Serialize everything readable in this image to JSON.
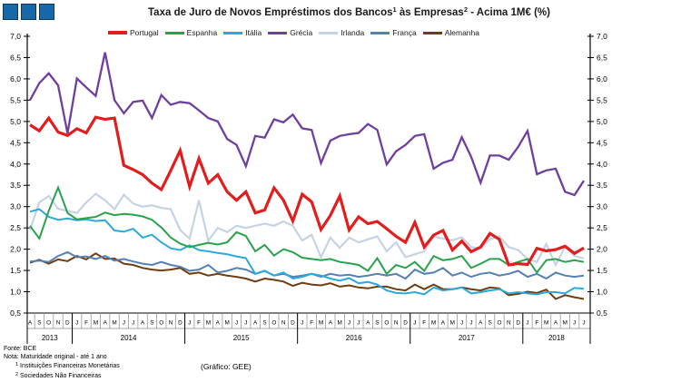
{
  "logo": {
    "color": "#1768A9",
    "border": "#0d3a5c",
    "square_count": 3
  },
  "title": {
    "part1": "Taxa de Juro de Novos Empréstimos dos Bancos",
    "sup1": "1",
    "part2": " às Empresas",
    "sup2": "2",
    "part3": " - Acima 1M€ (%)"
  },
  "footer": {
    "fonte": "Fonte: BCE",
    "nota": "Nota: Maturidade original - até 1 ano",
    "note1_sup": "1",
    "note1_text": " Instituições Financeiras Monetárias",
    "note2_sup": "2",
    "note2_text": " Sociedades Não Financeiras",
    "grafico": "(Gráfico:  GEE)"
  },
  "chart_data": {
    "type": "line",
    "title": "Taxa de Juro de Novos Empréstimos dos Bancos às Empresas - Acima 1M€ (%)",
    "ylim": [
      0.5,
      7.0
    ],
    "y_tick_step": 0.5,
    "y_tick_labels_desc": [
      "7,0",
      "6,5",
      "6,0",
      "5,5",
      "5,0",
      "4,5",
      "4,0",
      "3,5",
      "3,0",
      "2,5",
      "2,0",
      "1,5",
      "1,0",
      "0,5"
    ],
    "grid": false,
    "legend_position": "top",
    "months": [
      "A",
      "S",
      "O",
      "N",
      "D",
      "J",
      "F",
      "M",
      "A",
      "M",
      "J",
      "J",
      "A",
      "S",
      "O",
      "N",
      "D",
      "J",
      "F",
      "M",
      "A",
      "M",
      "J",
      "J",
      "A",
      "S",
      "O",
      "N",
      "D",
      "J",
      "F",
      "M",
      "A",
      "M",
      "J",
      "J",
      "A",
      "S",
      "O",
      "N",
      "D",
      "J",
      "F",
      "M",
      "A",
      "M",
      "J",
      "J",
      "A",
      "S",
      "O",
      "N",
      "D",
      "J",
      "F",
      "M",
      "A",
      "M",
      "J",
      "J"
    ],
    "years": [
      {
        "label": "2013",
        "months": 5
      },
      {
        "label": "2014",
        "months": 12
      },
      {
        "label": "2015",
        "months": 12
      },
      {
        "label": "2016",
        "months": 12
      },
      {
        "label": "2017",
        "months": 12
      },
      {
        "label": "2018",
        "months": 7
      }
    ],
    "series": [
      {
        "name": "Portugal",
        "color": "#E21D1D",
        "width": 3.2,
        "values": [
          4.92,
          4.78,
          5.08,
          4.75,
          4.67,
          4.83,
          4.73,
          5.1,
          5.05,
          5.08,
          3.97,
          3.87,
          3.75,
          3.55,
          3.4,
          3.85,
          4.32,
          3.47,
          4.13,
          3.55,
          3.75,
          3.35,
          3.15,
          3.35,
          2.85,
          2.92,
          3.44,
          3.15,
          2.66,
          3.29,
          3.11,
          2.46,
          2.79,
          3.25,
          2.45,
          2.76,
          2.6,
          2.65,
          2.48,
          2.3,
          2.16,
          2.63,
          2.05,
          2.33,
          2.44,
          1.98,
          2.19,
          1.94,
          2.05,
          2.37,
          2.23,
          1.63,
          1.66,
          1.64,
          2.02,
          1.96,
          1.99,
          2.07,
          1.9,
          2.03
        ]
      },
      {
        "name": "Espanha",
        "color": "#29A24D",
        "width": 2,
        "values": [
          2.55,
          2.25,
          2.9,
          3.45,
          2.85,
          2.7,
          2.73,
          2.76,
          2.86,
          2.8,
          2.83,
          2.81,
          2.77,
          2.69,
          2.51,
          2.27,
          2.13,
          2.05,
          2.1,
          2.15,
          2.11,
          2.16,
          2.4,
          2.31,
          1.95,
          2.1,
          1.85,
          2.0,
          1.93,
          1.8,
          1.77,
          1.74,
          1.77,
          1.7,
          1.67,
          1.63,
          1.49,
          1.79,
          1.42,
          1.63,
          1.56,
          1.7,
          1.49,
          1.84,
          1.74,
          1.77,
          1.84,
          1.56,
          1.66,
          1.77,
          1.77,
          1.63,
          1.7,
          1.77,
          1.45,
          1.74,
          1.77,
          1.7,
          1.74,
          1.7
        ]
      },
      {
        "name": "Itália",
        "color": "#2BA8DD",
        "width": 2,
        "values": [
          2.88,
          2.94,
          2.76,
          2.69,
          2.72,
          2.68,
          2.7,
          2.66,
          2.68,
          2.44,
          2.41,
          2.48,
          2.27,
          2.34,
          2.16,
          2.02,
          1.98,
          2.09,
          1.98,
          1.95,
          1.91,
          1.88,
          1.83,
          1.79,
          1.42,
          1.49,
          1.38,
          1.45,
          1.31,
          1.35,
          1.42,
          1.38,
          1.31,
          1.26,
          1.32,
          1.2,
          1.23,
          1.17,
          1.03,
          0.97,
          0.96,
          0.99,
          0.94,
          1.1,
          1.03,
          1.06,
          1.1,
          0.96,
          0.99,
          1.03,
          1.06,
          0.96,
          0.99,
          0.96,
          0.94,
          0.99,
          0.99,
          0.96,
          1.09,
          1.07
        ]
      },
      {
        "name": "Grécia",
        "color": "#6F3F9F",
        "width": 2.3,
        "values": [
          5.5,
          5.9,
          6.13,
          5.85,
          4.72,
          6.01,
          5.8,
          5.6,
          6.62,
          5.5,
          5.19,
          5.46,
          5.49,
          5.08,
          5.62,
          5.39,
          5.46,
          5.43,
          5.26,
          5.08,
          5.0,
          4.59,
          4.45,
          3.95,
          4.66,
          4.62,
          5.05,
          4.98,
          5.16,
          4.84,
          4.8,
          4.02,
          4.55,
          4.66,
          4.7,
          4.73,
          4.94,
          4.8,
          3.99,
          4.3,
          4.45,
          4.66,
          4.7,
          3.89,
          4.03,
          4.1,
          4.63,
          4.17,
          3.56,
          4.2,
          4.2,
          4.1,
          4.4,
          4.78,
          3.76,
          3.85,
          3.89,
          3.35,
          3.27,
          3.61
        ]
      },
      {
        "name": "Irlanda",
        "color": "#C5D3E5",
        "width": 2.2,
        "values": [
          2.45,
          3.1,
          3.25,
          2.95,
          2.9,
          2.85,
          3.1,
          3.3,
          3.15,
          2.94,
          3.28,
          3.07,
          3.0,
          3.03,
          2.97,
          2.94,
          2.45,
          2.25,
          3.15,
          2.2,
          2.5,
          2.4,
          2.55,
          2.5,
          2.55,
          2.6,
          2.55,
          2.65,
          2.55,
          2.2,
          2.34,
          1.81,
          2.27,
          2.03,
          2.27,
          2.16,
          2.23,
          2.3,
          1.95,
          2.16,
          1.81,
          1.88,
          1.95,
          2.3,
          2.25,
          2.21,
          2.28,
          2.05,
          2.02,
          2.23,
          2.3,
          2.05,
          1.98,
          1.77,
          1.7,
          2.12,
          1.63,
          2.05,
          1.84,
          1.78
        ]
      },
      {
        "name": "França",
        "color": "#5580B4",
        "width": 2,
        "values": [
          1.71,
          1.73,
          1.7,
          1.84,
          1.93,
          1.81,
          1.83,
          1.77,
          1.84,
          1.73,
          1.77,
          1.71,
          1.66,
          1.63,
          1.7,
          1.63,
          1.59,
          1.49,
          1.52,
          1.63,
          1.45,
          1.49,
          1.56,
          1.52,
          1.42,
          1.49,
          1.38,
          1.42,
          1.35,
          1.38,
          1.42,
          1.35,
          1.42,
          1.38,
          1.4,
          1.35,
          1.38,
          1.42,
          1.38,
          1.42,
          1.31,
          1.52,
          1.42,
          1.45,
          1.56,
          1.38,
          1.45,
          1.35,
          1.42,
          1.45,
          1.38,
          1.42,
          1.49,
          1.35,
          1.42,
          1.31,
          1.45,
          1.38,
          1.35,
          1.38
        ]
      },
      {
        "name": "Alemanha",
        "color": "#6F3D0F",
        "width": 2,
        "values": [
          1.68,
          1.75,
          1.66,
          1.76,
          1.72,
          1.84,
          1.76,
          1.9,
          1.77,
          1.78,
          1.66,
          1.63,
          1.56,
          1.52,
          1.5,
          1.52,
          1.56,
          1.42,
          1.45,
          1.38,
          1.42,
          1.38,
          1.35,
          1.31,
          1.24,
          1.31,
          1.28,
          1.24,
          1.14,
          1.21,
          1.17,
          1.15,
          1.2,
          1.12,
          1.15,
          1.1,
          1.08,
          1.12,
          1.12,
          1.06,
          1.03,
          1.17,
          1.06,
          1.17,
          1.06,
          1.06,
          1.1,
          1.06,
          1.03,
          1.1,
          1.08,
          0.92,
          0.95,
          1.0,
          0.97,
          1.05,
          0.83,
          0.92,
          0.87,
          0.83
        ]
      }
    ]
  }
}
